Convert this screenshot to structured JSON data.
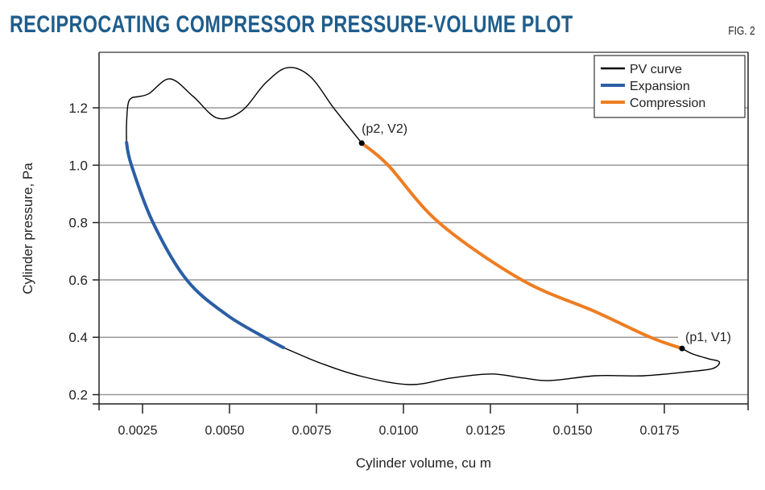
{
  "header": {
    "title": "RECIPROCATING COMPRESSOR PRESSURE-VOLUME PLOT",
    "figure_label": "FIG. 2"
  },
  "chart_data": {
    "type": "line",
    "title": "RECIPROCATING COMPRESSOR PRESSURE-VOLUME PLOT",
    "xlabel": "Cylinder volume, cu m",
    "ylabel": "Cylinder pressure, Pa",
    "xlim": [
      0.00125,
      0.0199
    ],
    "ylim": [
      0.17,
      1.39
    ],
    "xticks": [
      "0.0025",
      "0.0050",
      "0.0075",
      "0.0100",
      "0.0125",
      "0.0150",
      "0.0175"
    ],
    "xtick_values": [
      0.0025,
      0.005,
      0.0075,
      0.01,
      0.0125,
      0.015,
      0.0175
    ],
    "yticks": [
      "0.2",
      "0.4",
      "0.6",
      "0.8",
      "1.0",
      "1.2"
    ],
    "ytick_values": [
      0.2,
      0.4,
      0.6,
      0.8,
      1.0,
      1.2
    ],
    "grid": "horizontal",
    "legend_position": "top-right",
    "series": [
      {
        "name": "PV curve",
        "color": "#000000",
        "segments": [
          [
            [
              0.00204,
              1.079
            ],
            [
              0.00204,
              1.141
            ],
            [
              0.00208,
              1.211
            ],
            [
              0.00218,
              1.234
            ],
            [
              0.00238,
              1.239
            ],
            [
              0.00269,
              1.25
            ],
            [
              0.00329,
              1.301
            ],
            [
              0.00396,
              1.239
            ],
            [
              0.00465,
              1.164
            ],
            [
              0.00535,
              1.189
            ],
            [
              0.00604,
              1.287
            ],
            [
              0.00667,
              1.34
            ],
            [
              0.00732,
              1.309
            ],
            [
              0.00801,
              1.197
            ],
            [
              0.0088,
              1.077
            ]
          ],
          [
            [
              0.00655,
              0.364
            ],
            [
              0.00766,
              0.308
            ],
            [
              0.00882,
              0.263
            ],
            [
              0.0102,
              0.235
            ],
            [
              0.01137,
              0.258
            ],
            [
              0.01252,
              0.272
            ],
            [
              0.01345,
              0.258
            ],
            [
              0.01421,
              0.249
            ],
            [
              0.01553,
              0.266
            ],
            [
              0.01692,
              0.266
            ],
            [
              0.0182,
              0.28
            ],
            [
              0.01889,
              0.291
            ],
            [
              0.01908,
              0.314
            ],
            [
              0.01877,
              0.325
            ],
            [
              0.01831,
              0.342
            ],
            [
              0.01801,
              0.361
            ]
          ]
        ]
      },
      {
        "name": "Expansion",
        "color": "#2b5fa5",
        "x": [
          0.00204,
          0.00218,
          0.0028,
          0.00377,
          0.0049,
          0.006,
          0.00655
        ],
        "y": [
          1.079,
          1.0,
          0.8,
          0.6,
          0.48,
          0.4,
          0.364
        ]
      },
      {
        "name": "Compression",
        "color": "#ee7d22",
        "x": [
          0.0088,
          0.00956,
          0.01102,
          0.0134,
          0.0155,
          0.0171,
          0.01801
        ],
        "y": [
          1.077,
          1.0,
          0.8,
          0.6,
          0.49,
          0.4,
          0.361
        ]
      }
    ],
    "annotations": [
      {
        "text": "(p2, V2)",
        "x": 0.0088,
        "y": 1.077
      },
      {
        "text": "(p1, V1)",
        "x": 0.01801,
        "y": 0.361
      }
    ]
  }
}
